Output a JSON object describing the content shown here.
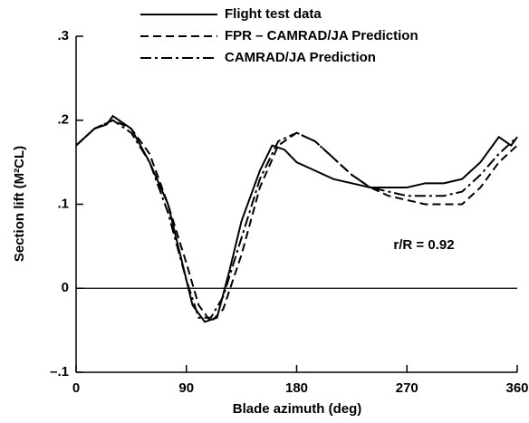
{
  "chart_data": {
    "type": "line",
    "x_label": "Blade azimuth (deg)",
    "y_label": "Section lift (M²CL)",
    "annotation": "r/R = 0.92",
    "xlim": [
      0,
      360
    ],
    "xticks": [
      0,
      90,
      180,
      270,
      360
    ],
    "ylim": [
      -0.1,
      0.3
    ],
    "yticks": [
      {
        "value": -0.1,
        "label": "–.1"
      },
      {
        "value": 0,
        "label": "0"
      },
      {
        "value": 0.1,
        "label": ".1"
      },
      {
        "value": 0.2,
        "label": ".2"
      },
      {
        "value": 0.3,
        "label": ".3"
      }
    ],
    "zero_line": true,
    "series": [
      {
        "name": "Flight test data",
        "color": "#000000",
        "dash": "solid",
        "x": [
          0,
          15,
          25,
          30,
          45,
          60,
          75,
          85,
          95,
          105,
          115,
          125,
          135,
          150,
          160,
          170,
          180,
          195,
          210,
          225,
          240,
          255,
          270,
          285,
          300,
          315,
          330,
          345,
          355,
          360
        ],
        "values": [
          0.17,
          0.19,
          0.195,
          0.205,
          0.19,
          0.15,
          0.1,
          0.04,
          -0.02,
          -0.04,
          -0.035,
          0.02,
          0.08,
          0.14,
          0.17,
          0.165,
          0.15,
          0.14,
          0.13,
          0.125,
          0.12,
          0.12,
          0.12,
          0.125,
          0.125,
          0.13,
          0.15,
          0.18,
          0.17,
          0.18
        ]
      },
      {
        "name": "FPR – CAMRAD/JA Prediction",
        "color": "#000000",
        "dash": "dashed",
        "x": [
          0,
          15,
          30,
          45,
          60,
          75,
          90,
          100,
          110,
          120,
          135,
          150,
          165,
          180,
          195,
          210,
          225,
          240,
          255,
          270,
          285,
          300,
          315,
          330,
          345,
          360
        ],
        "values": [
          0.17,
          0.19,
          0.2,
          0.19,
          0.16,
          0.1,
          0.03,
          -0.02,
          -0.04,
          -0.025,
          0.04,
          0.12,
          0.17,
          0.185,
          0.175,
          0.155,
          0.135,
          0.12,
          0.11,
          0.105,
          0.1,
          0.1,
          0.1,
          0.12,
          0.15,
          0.17
        ]
      },
      {
        "name": "CAMRAD/JA Prediction",
        "color": "#000000",
        "dash": "dashdot",
        "x": [
          0,
          15,
          30,
          45,
          60,
          75,
          90,
          100,
          110,
          120,
          135,
          150,
          165,
          180,
          195,
          210,
          225,
          240,
          255,
          270,
          285,
          300,
          315,
          330,
          345,
          360
        ],
        "values": [
          0.17,
          0.19,
          0.2,
          0.185,
          0.15,
          0.09,
          0.01,
          -0.035,
          -0.035,
          -0.01,
          0.06,
          0.13,
          0.175,
          0.185,
          0.175,
          0.155,
          0.135,
          0.12,
          0.115,
          0.11,
          0.11,
          0.11,
          0.115,
          0.135,
          0.16,
          0.18
        ]
      }
    ]
  }
}
